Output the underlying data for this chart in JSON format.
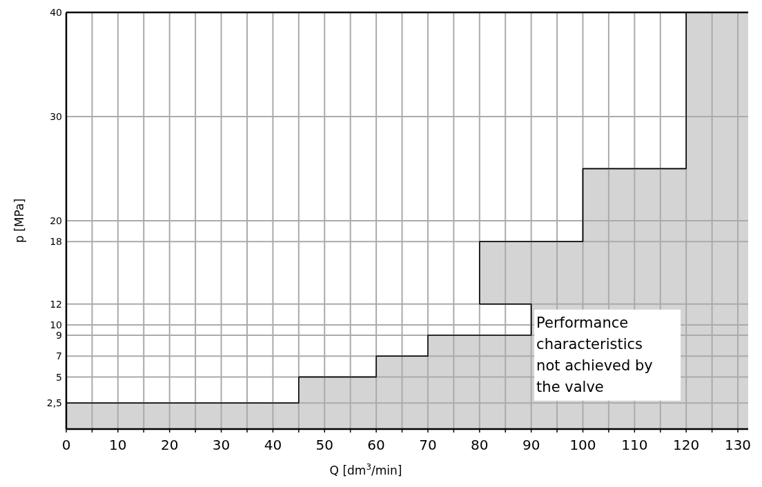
{
  "chart_data": {
    "type": "area",
    "xlabel": "Q [dm$^{3}$/min]",
    "ylabel": "p [MPa]",
    "x": [
      0,
      45,
      45,
      60,
      60,
      70,
      70,
      90,
      90,
      80,
      80,
      100,
      100,
      120,
      120,
      132
    ],
    "series": [
      {
        "color": "#d4d4d4",
        "values": [
          2.5,
          2.5,
          5,
          5,
          7,
          7,
          9,
          9,
          12,
          12,
          18,
          18,
          25,
          25,
          40,
          40
        ]
      }
    ],
    "xlim": [
      0,
      132
    ],
    "xticks": [
      0,
      {
        "value": 5,
        "label": null
      },
      10,
      {
        "value": 15,
        "label": null
      },
      20,
      {
        "value": 25,
        "label": null
      },
      30,
      {
        "value": 35,
        "label": null
      },
      40,
      {
        "value": 45,
        "label": null
      },
      50,
      {
        "value": 55,
        "label": null
      },
      60,
      {
        "value": 65,
        "label": null
      },
      70,
      {
        "value": 75,
        "label": null
      },
      80,
      {
        "value": 85,
        "label": null
      },
      90,
      {
        "value": 95,
        "label": null
      },
      100,
      {
        "value": 105,
        "label": null
      },
      110,
      {
        "value": 115,
        "label": null
      },
      120,
      {
        "value": 125,
        "label": null
      },
      130
    ],
    "ylim": [
      0,
      40
    ],
    "yticks": [
      {
        "value": 2.5,
        "label": "2,5"
      },
      5,
      7,
      9,
      10,
      12,
      18,
      20,
      30,
      40
    ],
    "grid": true,
    "annotations": [
      "Performance characteristics not achieved by the valve"
    ]
  }
}
